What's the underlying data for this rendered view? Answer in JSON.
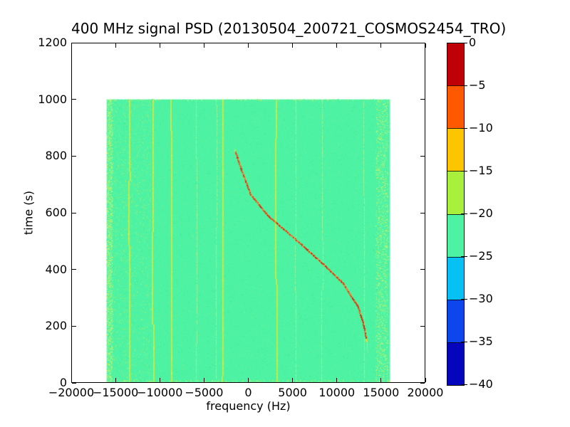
{
  "chart_data": {
    "type": "heatmap",
    "title": "400 MHz signal PSD (20130504_200721_COSMOS2454_TRO)",
    "xlabel": "frequency (Hz)",
    "ylabel": "time (s)",
    "xlim": [
      -20000,
      20000
    ],
    "ylim": [
      0,
      1200
    ],
    "grid": false,
    "x_ticks": {
      "values": [
        -20000,
        -15000,
        -10000,
        -5000,
        0,
        5000,
        10000,
        15000,
        20000
      ],
      "labels": [
        "−20000",
        "−15000",
        "−10000",
        "−5000",
        "0",
        "5000",
        "10000",
        "15000",
        "20000"
      ]
    },
    "y_ticks": {
      "values": [
        0,
        200,
        400,
        600,
        800,
        1000,
        1200
      ],
      "labels": [
        "0",
        "200",
        "400",
        "600",
        "800",
        "1000",
        "1200"
      ]
    },
    "data_extent": {
      "freq_hz": [
        -16000,
        16000
      ],
      "time_s": [
        0,
        1000
      ]
    },
    "background": {
      "level_band_db": [
        -25,
        -20
      ],
      "color": "#4df2a2"
    },
    "colorbar": {
      "position": "right",
      "levels_db": [
        0,
        -5,
        -10,
        -15,
        -20,
        -25,
        -30,
        -35,
        -40
      ],
      "tick_labels": [
        "0",
        "−5",
        "−10",
        "−15",
        "−20",
        "−25",
        "−30",
        "−35",
        "−40"
      ],
      "band_colors": [
        "#c00008",
        "#fe5900",
        "#fdc500",
        "#a8f03c",
        "#4df2a2",
        "#07c1f5",
        "#0c46ec",
        "#0505bb"
      ]
    },
    "doppler_track": {
      "color": "#e2571b",
      "points": [
        {
          "t_s": 823,
          "f_hz": -1500
        },
        {
          "t_s": 748,
          "f_hz": -700
        },
        {
          "t_s": 665,
          "f_hz": 300
        },
        {
          "t_s": 590,
          "f_hz": 2300
        },
        {
          "t_s": 515,
          "f_hz": 5100
        },
        {
          "t_s": 429,
          "f_hz": 8200
        },
        {
          "t_s": 354,
          "f_hz": 10700
        },
        {
          "t_s": 271,
          "f_hz": 12400
        },
        {
          "t_s": 213,
          "f_hz": 13000
        },
        {
          "t_s": 146,
          "f_hz": 13400
        }
      ]
    },
    "interference_lines": {
      "color": "#c6ea45",
      "bright_hz": [
        -13400,
        -10750,
        -8730,
        -2870,
        3180
      ],
      "faint_hz": [
        -5900,
        -3660,
        5350,
        8330,
        13000
      ]
    },
    "noise_bands_hz": [
      [
        -16000,
        -15350
      ],
      [
        14400,
        15800
      ]
    ]
  }
}
